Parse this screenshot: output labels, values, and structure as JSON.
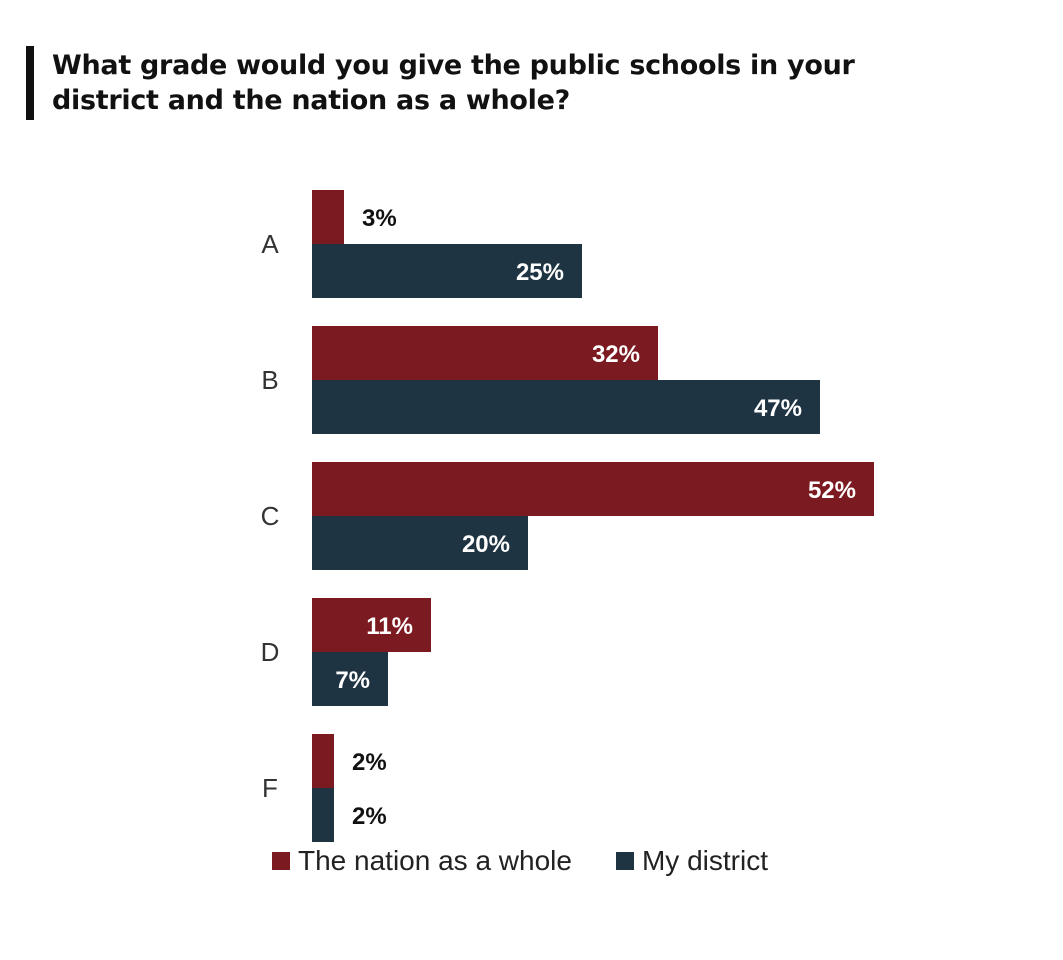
{
  "title": "What grade would you give the public schools in your district and the nation as a whole?",
  "chart_data": {
    "type": "bar",
    "orientation": "horizontal",
    "title": "What grade would you give the public schools in your district and the nation as a whole?",
    "categories": [
      "A",
      "B",
      "C",
      "D",
      "F"
    ],
    "series": [
      {
        "name": "The nation as a whole",
        "color": "#7b1a20",
        "values": [
          3,
          32,
          52,
          11,
          2
        ],
        "labels": [
          "3%",
          "32%",
          "52%",
          "11%",
          "2%"
        ]
      },
      {
        "name": "My district",
        "color": "#1f3442",
        "values": [
          25,
          47,
          20,
          7,
          2
        ],
        "labels": [
          "25%",
          "47%",
          "20%",
          "7%",
          "2%"
        ]
      }
    ],
    "xlim": [
      0,
      52
    ],
    "grid": false,
    "legend": "bottom"
  }
}
